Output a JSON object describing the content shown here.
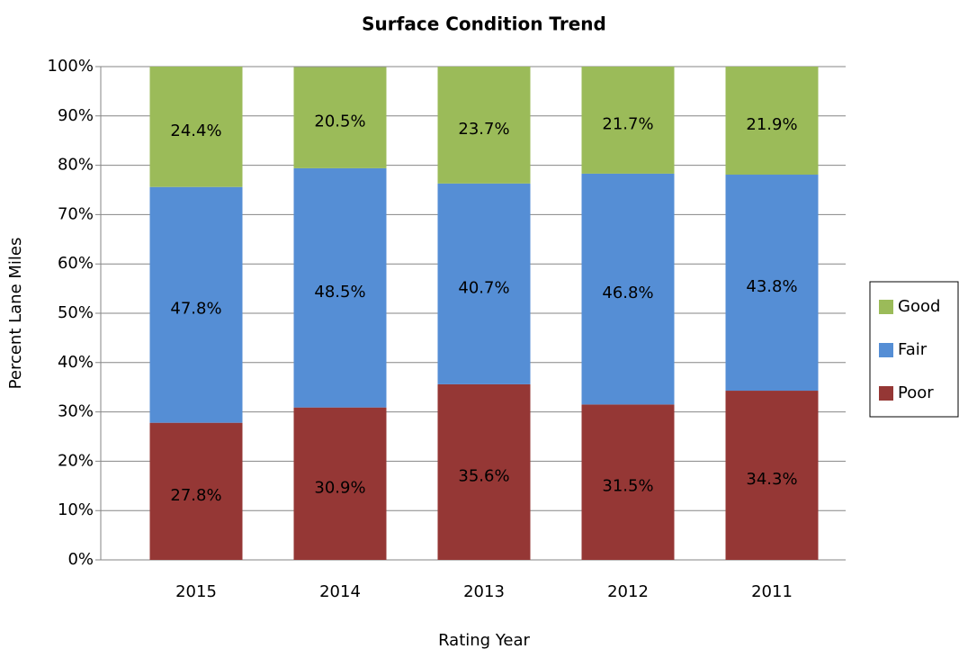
{
  "chart_data": {
    "type": "stacked_bar",
    "title": "Surface Condition Trend",
    "x_label": "Rating Year",
    "y_label": "Percent Lane Miles",
    "categories": [
      "2015",
      "2014",
      "2013",
      "2012",
      "2011"
    ],
    "series": [
      {
        "name": "Poor",
        "color": "#953735",
        "values": [
          27.8,
          30.9,
          35.6,
          31.5,
          34.3
        ],
        "value_labels": [
          "27.8%",
          "30.9%",
          "35.6%",
          "31.5%",
          "34.3%"
        ]
      },
      {
        "name": "Fair",
        "color": "#558ed5",
        "values": [
          47.8,
          48.5,
          40.7,
          46.8,
          43.8
        ],
        "value_labels": [
          "47.8%",
          "48.5%",
          "40.7%",
          "46.8%",
          "43.8%"
        ]
      },
      {
        "name": "Good",
        "color": "#9bbb59",
        "values": [
          24.4,
          20.5,
          23.7,
          21.7,
          21.9
        ],
        "value_labels": [
          "24.4%",
          "20.5%",
          "23.7%",
          "21.7%",
          "21.9%"
        ]
      }
    ],
    "ylim": [
      0,
      100
    ],
    "yticks": [
      {
        "value": 0,
        "label": "0%"
      },
      {
        "value": 10,
        "label": "10%"
      },
      {
        "value": 20,
        "label": "20%"
      },
      {
        "value": 30,
        "label": "30%"
      },
      {
        "value": 40,
        "label": "40%"
      },
      {
        "value": 50,
        "label": "50%"
      },
      {
        "value": 60,
        "label": "60%"
      },
      {
        "value": 70,
        "label": "70%"
      },
      {
        "value": 80,
        "label": "80%"
      },
      {
        "value": 90,
        "label": "90%"
      },
      {
        "value": 100,
        "label": "100%"
      }
    ],
    "grid": true,
    "legend": "right"
  }
}
